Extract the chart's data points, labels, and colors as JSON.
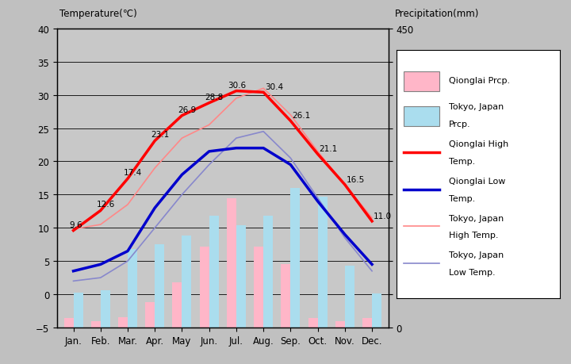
{
  "months": [
    "Jan.",
    "Feb.",
    "Mar.",
    "Apr.",
    "May",
    "Jun.",
    "Jul.",
    "Aug.",
    "Sep.",
    "Oct.",
    "Nov.",
    "Dec."
  ],
  "qionglai_high": [
    9.6,
    12.6,
    17.4,
    23.1,
    26.9,
    28.8,
    30.6,
    30.4,
    26.1,
    21.1,
    16.5,
    11.0
  ],
  "qionglai_low": [
    3.5,
    4.5,
    6.5,
    13.0,
    18.0,
    21.5,
    22.0,
    22.0,
    19.5,
    14.0,
    9.0,
    4.5
  ],
  "tokyo_high": [
    9.8,
    10.5,
    13.5,
    19.0,
    23.5,
    25.5,
    29.5,
    31.0,
    27.0,
    21.5,
    16.5,
    11.5
  ],
  "tokyo_low": [
    2.0,
    2.5,
    5.0,
    10.0,
    15.0,
    19.5,
    23.5,
    24.5,
    20.5,
    14.5,
    8.5,
    3.5
  ],
  "qionglai_prcp_mm": [
    14,
    10,
    16,
    38,
    68,
    122,
    194,
    122,
    96,
    14,
    10,
    14
  ],
  "tokyo_prcp_mm": [
    52,
    56,
    118,
    125,
    138,
    168,
    154,
    168,
    210,
    197,
    93,
    51
  ],
  "temp_min": -5,
  "temp_max": 40,
  "prcp_min": 0,
  "prcp_max": 450,
  "bg_color": "#c8c8c8",
  "fig_color": "#c0c0c0",
  "qionglai_high_color": "#ff0000",
  "qionglai_low_color": "#0000cc",
  "tokyo_high_color": "#ff8888",
  "tokyo_low_color": "#8888cc",
  "qionglai_prcp_color": "#ffb6c8",
  "tokyo_prcp_color": "#aaddee",
  "grid_color": "#000000",
  "bar_width": 0.35,
  "annotation_labels": [
    "9.6",
    "12.6",
    "17.4",
    "23.1",
    "26.9",
    "28.8",
    "30.6",
    "30.4",
    "26.1",
    "21.1",
    "16.5",
    "11.0"
  ]
}
